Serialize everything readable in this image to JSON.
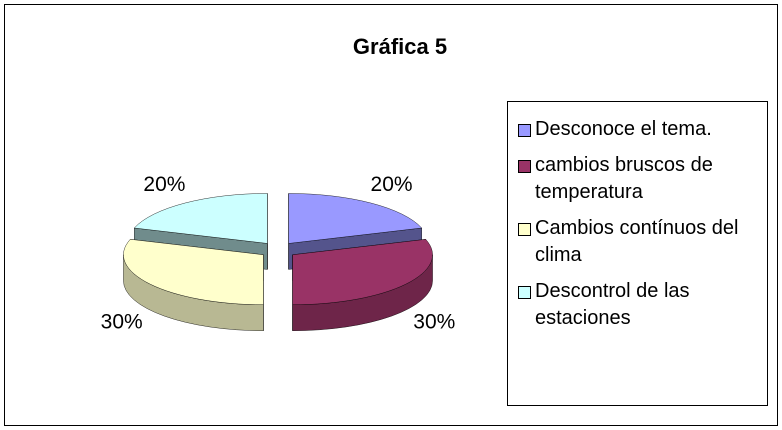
{
  "chart_data": {
    "type": "pie",
    "title": "Gráfica 5",
    "categories": [
      "Desconoce el tema.",
      "cambios bruscos de temperatura",
      "Cambios contínuos del clima",
      "Descontrol de las estaciones"
    ],
    "values": [
      20,
      30,
      30,
      20
    ],
    "value_labels": [
      "20%",
      "30%",
      "30%",
      "20%"
    ],
    "colors": [
      "#9999ff",
      "#993366",
      "#ffffcc",
      "#ccffff"
    ],
    "legend": "right"
  }
}
